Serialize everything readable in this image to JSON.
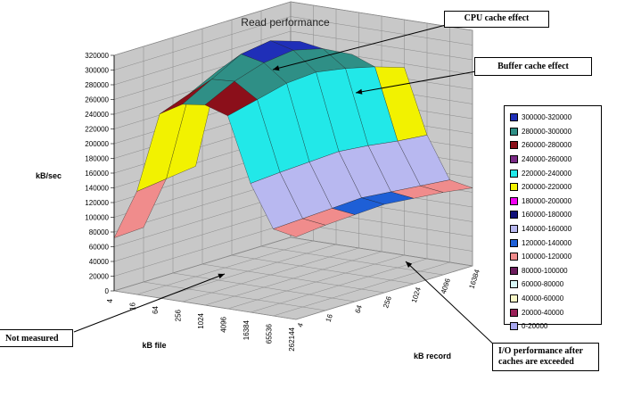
{
  "chart_data": {
    "type": "surface",
    "title": "Read performance",
    "xlabel": "kB file",
    "ylabel": "kB record",
    "zlabel": "kB/sec",
    "zlim": [
      0,
      320000
    ],
    "z_ticks": [
      "0",
      "20000",
      "40000",
      "60000",
      "80000",
      "100000",
      "120000",
      "140000",
      "160000",
      "180000",
      "200000",
      "220000",
      "240000",
      "260000",
      "280000",
      "300000",
      "320000"
    ],
    "x_categories": [
      "4",
      "16",
      "64",
      "256",
      "1024",
      "4096",
      "16384",
      "65536",
      "262144"
    ],
    "y_categories": [
      "4",
      "16",
      "64",
      "256",
      "1024",
      "4096",
      "16384"
    ],
    "series_note": "rows = kB record, cols = kB file; null = not measured",
    "values": [
      [
        72000,
        140000,
        250000,
        268000,
        272000,
        262000,
        175000,
        118000,
        112000
      ],
      [
        74000,
        145000,
        265000,
        290000,
        292000,
        272000,
        178000,
        120000,
        116000
      ],
      [
        null,
        150000,
        285000,
        312000,
        305000,
        282000,
        180000,
        122000,
        118000
      ],
      [
        null,
        null,
        290000,
        318000,
        310000,
        285000,
        182000,
        124000,
        120000
      ],
      [
        null,
        null,
        null,
        305000,
        300000,
        278000,
        178000,
        120000,
        116000
      ],
      [
        null,
        null,
        null,
        null,
        280000,
        268000,
        172000,
        116000,
        112000
      ],
      [
        null,
        null,
        null,
        null,
        null,
        255000,
        168000,
        112000,
        106000
      ]
    ],
    "legend_position": "right",
    "legend": [
      {
        "label": "300000-320000",
        "color": "#1f2fb8"
      },
      {
        "label": "280000-300000",
        "color": "#2f8f86"
      },
      {
        "label": "260000-280000",
        "color": "#8b0f1a"
      },
      {
        "label": "240000-260000",
        "color": "#7b2a86"
      },
      {
        "label": "220000-240000",
        "color": "#22e8e8"
      },
      {
        "label": "200000-220000",
        "color": "#f2f200"
      },
      {
        "label": "180000-200000",
        "color": "#f200f2"
      },
      {
        "label": "160000-180000",
        "color": "#10107a"
      },
      {
        "label": "140000-160000",
        "color": "#b8b8f0"
      },
      {
        "label": "120000-140000",
        "color": "#1e5fd6"
      },
      {
        "label": "100000-120000",
        "color": "#f08c8c"
      },
      {
        "label": "80000-100000",
        "color": "#6c1b5c"
      },
      {
        "label": "60000-80000",
        "color": "#d8f8f8"
      },
      {
        "label": "40000-60000",
        "color": "#f8f8c8"
      },
      {
        "label": "20000-40000",
        "color": "#9a2058"
      },
      {
        "label": "0-20000",
        "color": "#a8a8f0"
      }
    ],
    "annotations": [
      {
        "id": "cpu",
        "text": "CPU cache effect"
      },
      {
        "id": "buffer",
        "text": "Buffer cache effect"
      },
      {
        "id": "notmeasured",
        "text": "Not measured"
      },
      {
        "id": "io",
        "text": "I/O performance after caches are exceeded"
      }
    ]
  }
}
